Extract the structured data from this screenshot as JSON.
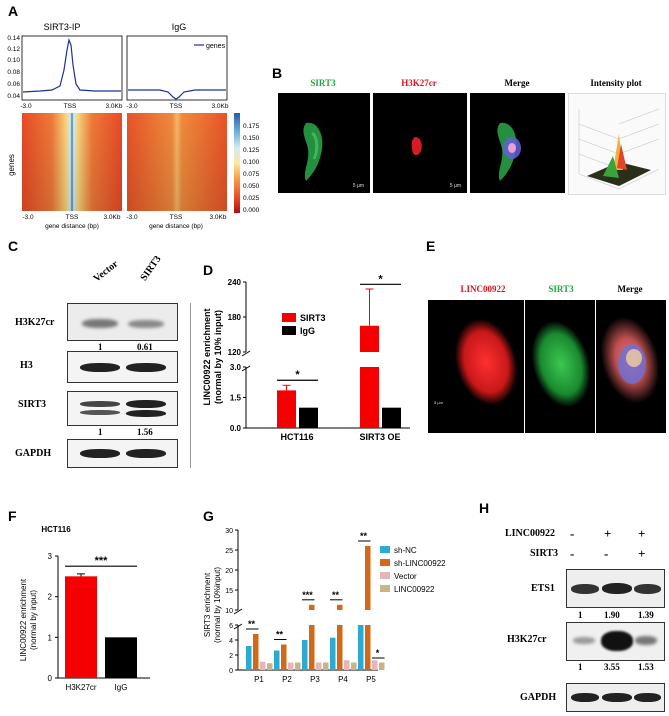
{
  "panels": {
    "a": "A",
    "b": "B",
    "c": "C",
    "d": "D",
    "e": "E",
    "f": "F",
    "g": "G",
    "h": "H"
  },
  "panel_a": {
    "profile_titles": [
      "SIRT3-IP",
      "IgG"
    ],
    "legend": "genes",
    "y_ticks": [
      "0.14",
      "0.12",
      "0.10",
      "0.08",
      "0.06",
      "0.04"
    ],
    "x_ticks": [
      "-3.0",
      "TSS",
      "3.0Kb"
    ],
    "ylabel": "genes",
    "xlabel": "gene distance (bp)",
    "colorbar_ticks": [
      "0.175",
      "0.150",
      "0.125",
      "0.100",
      "0.075",
      "0.050",
      "0.025",
      "0.000"
    ]
  },
  "panel_b": {
    "labels": [
      "SIRT3",
      "H3K27cr",
      "Merge",
      "Intensity plot"
    ],
    "label_colors": [
      "#1aaa3a",
      "#e0141a",
      "#000000",
      "#000000"
    ],
    "scale_text": "5 μm"
  },
  "panel_c": {
    "lanes": [
      "Vector",
      "SIRT3"
    ],
    "rows": [
      "H3K27cr",
      "H3",
      "SIRT3",
      "GAPDH"
    ],
    "quant_h3k27cr": [
      "1",
      "0.61"
    ],
    "quant_sirt3": [
      "1",
      "1.56"
    ]
  },
  "panel_d_e_labels": {
    "e_labels": [
      "LINC00922",
      "SIRT3",
      "Merge"
    ],
    "e_colors": [
      "#e0141a",
      "#1aaa3a",
      "#000000"
    ],
    "e_scale_text": "5 μm"
  },
  "panel_h": {
    "row_labels": [
      "LINC00922",
      "SIRT3"
    ],
    "linc_signs": [
      "-",
      "+",
      "+"
    ],
    "sirt3_signs": [
      "-",
      "-",
      "+"
    ],
    "blots": [
      "ETS1",
      "H3K27cr",
      "GAPDH"
    ],
    "quant_ets1": [
      "1",
      "1.90",
      "1.39"
    ],
    "quant_h3k27cr": [
      "1",
      "3.55",
      "1.53"
    ]
  },
  "chart_data": [
    {
      "panel": "D",
      "type": "bar",
      "ylabel": "LINC00922 enrichment (normal by 10% input)",
      "categories": [
        "HCT116",
        "SIRT3 OE"
      ],
      "series": [
        {
          "name": "SIRT3",
          "values": [
            1.85,
            165
          ],
          "color": "#f50000"
        },
        {
          "name": "IgG",
          "values": [
            1.0,
            1.0
          ],
          "color": "#000000"
        }
      ],
      "y_ticks_lower": [
        "0.0",
        "1.5",
        "3.0"
      ],
      "y_ticks_upper": [
        "120",
        "180",
        "240"
      ],
      "axis_break": [
        3.0,
        120
      ],
      "significance": [
        "*",
        "*"
      ]
    },
    {
      "panel": "F",
      "type": "bar",
      "title": "HCT116",
      "ylabel": "LINC00922 enrichment (normal by input)",
      "categories": [
        "H3K27cr",
        "IgG"
      ],
      "values": [
        2.5,
        1.0
      ],
      "colors": [
        "#f50000",
        "#000000"
      ],
      "y_ticks": [
        "0",
        "1",
        "2",
        "3"
      ],
      "ylim": [
        0,
        3
      ],
      "significance": "***"
    },
    {
      "panel": "G",
      "type": "bar",
      "ylabel": "SIRT3 enrichment (normal by 10%input)",
      "categories": [
        "P1",
        "P2",
        "P3",
        "P4",
        "P5"
      ],
      "series": [
        {
          "name": "sh-NC",
          "values": [
            3.2,
            2.6,
            4.0,
            4.3,
            9.0
          ],
          "color": "#2ea9cf"
        },
        {
          "name": "sh-LINC00922",
          "values": [
            4.8,
            3.4,
            11.3,
            11.3,
            26.0
          ],
          "color": "#d2691a"
        },
        {
          "name": "Vector",
          "values": [
            1.1,
            1.0,
            1.0,
            1.3,
            1.3
          ],
          "color": "#e6b6b6"
        },
        {
          "name": "LINC00922",
          "values": [
            0.9,
            1.0,
            1.0,
            1.0,
            1.0
          ],
          "color": "#c9b48a"
        }
      ],
      "y_ticks_lower": [
        "0",
        "2",
        "4",
        "6"
      ],
      "y_ticks_upper": [
        "10",
        "15",
        "20",
        "25",
        "30"
      ],
      "significance": [
        "**",
        "**",
        "***",
        "**",
        "**"
      ],
      "extra_significance_p5": "*"
    }
  ]
}
